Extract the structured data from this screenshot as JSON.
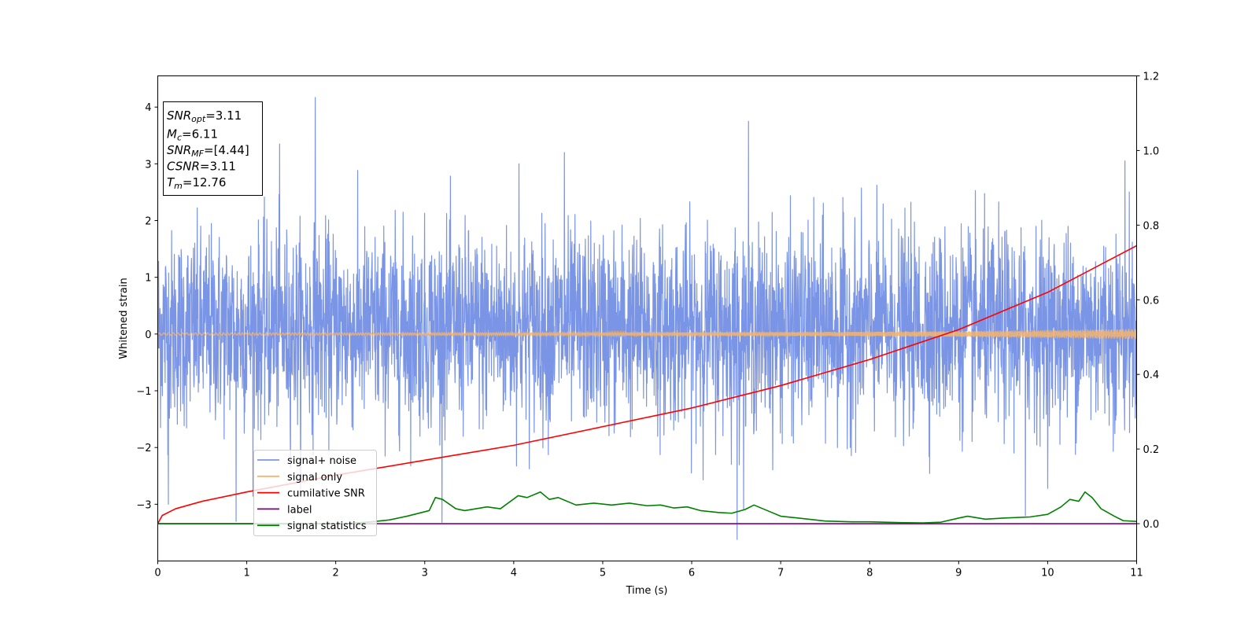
{
  "chart_data": {
    "type": "line",
    "xlabel": "Time (s)",
    "ylabel": "Whitened strain",
    "xlim": [
      0,
      11
    ],
    "ylim_left": [
      -4.0,
      4.55
    ],
    "ylim_right": [
      -0.1,
      1.2
    ],
    "x_ticks": [
      0,
      1,
      2,
      3,
      4,
      5,
      6,
      7,
      8,
      9,
      10,
      11
    ],
    "y_ticks_left": [
      -3,
      -2,
      -1,
      0,
      1,
      2,
      3,
      4
    ],
    "y_tick_labels_left": [
      "−3",
      "−2",
      "−1",
      "0",
      "1",
      "2",
      "3",
      "4"
    ],
    "y_ticks_right": [
      0.0,
      0.2,
      0.4,
      0.6,
      0.8,
      1.0,
      1.2
    ],
    "y_tick_labels_right": [
      "0.0",
      "0.2",
      "0.4",
      "0.6",
      "0.8",
      "1.0",
      "1.2"
    ],
    "grid": false,
    "legend_position": "lower-left",
    "info_box": {
      "lines": [
        {
          "base": "SNR",
          "sub": "opt",
          "value": "=3.11"
        },
        {
          "base": "M",
          "sub": "c",
          "value": "=6.11"
        },
        {
          "base": "SNR",
          "sub": "MF",
          "value": "=[4.44]"
        },
        {
          "base": "CSNR",
          "sub": "",
          "value": "=3.11"
        },
        {
          "base": "T",
          "sub": "m",
          "value": "=12.76"
        }
      ]
    },
    "series": [
      {
        "name": "signal+ noise",
        "color": "#7b95e6",
        "axis": "left",
        "noise_envelope": {
          "typical_low": -1.6,
          "typical_high": 1.9,
          "peak_max": 4.17,
          "peak_min": -3.62
        },
        "peaks": [
          {
            "x": 1.77,
            "y": 4.17
          },
          {
            "x": 6.64,
            "y": 3.75
          },
          {
            "x": 6.51,
            "y": -3.62
          },
          {
            "x": 0.12,
            "y": -3.0
          },
          {
            "x": 0.88,
            "y": -3.3
          },
          {
            "x": 1.37,
            "y": 3.35
          },
          {
            "x": 4.06,
            "y": 3.0
          },
          {
            "x": 4.57,
            "y": 3.2
          },
          {
            "x": 9.75,
            "y": -3.2
          },
          {
            "x": 10.87,
            "y": 3.05
          }
        ]
      },
      {
        "name": "signal only",
        "color": "#f5b46c",
        "axis": "left",
        "x": [
          0,
          2,
          4,
          6,
          8,
          9,
          10,
          11
        ],
        "amplitude": [
          0.02,
          0.02,
          0.025,
          0.03,
          0.04,
          0.05,
          0.07,
          0.09
        ]
      },
      {
        "name": "cumilative SNR",
        "color": "#ff0000",
        "axis": "right",
        "x": [
          0,
          0.05,
          0.2,
          0.5,
          1,
          2,
          3,
          4,
          5,
          6,
          7,
          8,
          9,
          10,
          11
        ],
        "y": [
          0.0,
          0.022,
          0.04,
          0.06,
          0.085,
          0.13,
          0.17,
          0.21,
          0.26,
          0.31,
          0.37,
          0.44,
          0.52,
          0.62,
          0.745
        ]
      },
      {
        "name": "label",
        "color": "#800080",
        "axis": "right",
        "x": [
          0,
          11
        ],
        "y": [
          0,
          0
        ]
      },
      {
        "name": "signal statistics",
        "color": "#008000",
        "axis": "right",
        "x": [
          0,
          2.1,
          2.4,
          2.6,
          2.8,
          3.05,
          3.12,
          3.2,
          3.35,
          3.45,
          3.7,
          3.85,
          4.05,
          4.15,
          4.3,
          4.4,
          4.5,
          4.7,
          4.9,
          5.1,
          5.3,
          5.5,
          5.65,
          5.8,
          5.95,
          6.1,
          6.3,
          6.45,
          6.6,
          6.7,
          6.85,
          7.0,
          7.2,
          7.5,
          7.8,
          8.0,
          8.3,
          8.6,
          8.8,
          9.0,
          9.1,
          9.3,
          9.5,
          9.8,
          10.0,
          10.15,
          10.25,
          10.35,
          10.42,
          10.5,
          10.6,
          10.75,
          10.85,
          11.0
        ],
        "y": [
          0.0,
          0.0,
          0.005,
          0.01,
          0.02,
          0.035,
          0.07,
          0.065,
          0.04,
          0.035,
          0.045,
          0.04,
          0.075,
          0.07,
          0.085,
          0.065,
          0.07,
          0.05,
          0.055,
          0.05,
          0.055,
          0.048,
          0.05,
          0.042,
          0.045,
          0.035,
          0.03,
          0.028,
          0.038,
          0.05,
          0.035,
          0.02,
          0.015,
          0.007,
          0.005,
          0.005,
          0.003,
          0.002,
          0.004,
          0.015,
          0.02,
          0.012,
          0.015,
          0.018,
          0.025,
          0.045,
          0.065,
          0.06,
          0.085,
          0.07,
          0.04,
          0.02,
          0.008,
          0.006
        ]
      }
    ]
  }
}
